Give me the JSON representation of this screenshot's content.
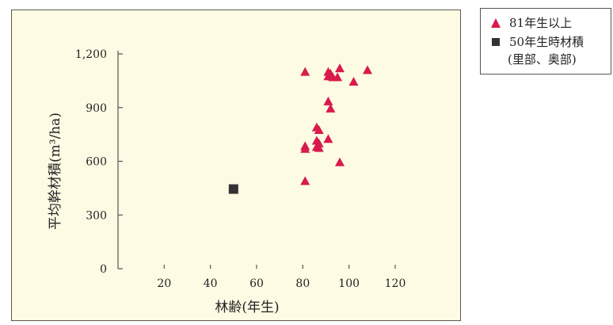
{
  "chart_data": {
    "type": "scatter",
    "title": "",
    "xlabel": "林齢(年生)",
    "ylabel": "平均幹材積(m³/ha)",
    "xlim": [
      0,
      120
    ],
    "ylim": [
      0,
      1200
    ],
    "xticks": [
      "20",
      "40",
      "60",
      "80",
      "100",
      "120"
    ],
    "xtick_values": [
      20,
      40,
      60,
      80,
      100,
      120
    ],
    "yticks": [
      "0",
      "300",
      "600",
      "900",
      "1,200"
    ],
    "ytick_values": [
      0,
      300,
      600,
      900,
      1200
    ],
    "grid": false,
    "legend_position": "outside-right-top",
    "series": [
      {
        "name": "81年生以上",
        "marker": "triangle",
        "color": "#d81b4c",
        "points": [
          [
            81,
            1100
          ],
          [
            81,
            685
          ],
          [
            81,
            670
          ],
          [
            81,
            490
          ],
          [
            86,
            790
          ],
          [
            87,
            775
          ],
          [
            86,
            715
          ],
          [
            87,
            700
          ],
          [
            86,
            680
          ],
          [
            87,
            675
          ],
          [
            91,
            1100
          ],
          [
            91,
            1075
          ],
          [
            92,
            1090
          ],
          [
            93,
            1070
          ],
          [
            91,
            935
          ],
          [
            92,
            895
          ],
          [
            91,
            725
          ],
          [
            95,
            1070
          ],
          [
            96,
            1120
          ],
          [
            96,
            595
          ],
          [
            102,
            1045
          ],
          [
            108,
            1110
          ]
        ]
      },
      {
        "name": "50年生時材積",
        "name_line2": "(里部、奥部)",
        "marker": "square",
        "color": "#333333",
        "points": [
          [
            50,
            445
          ]
        ]
      }
    ]
  }
}
